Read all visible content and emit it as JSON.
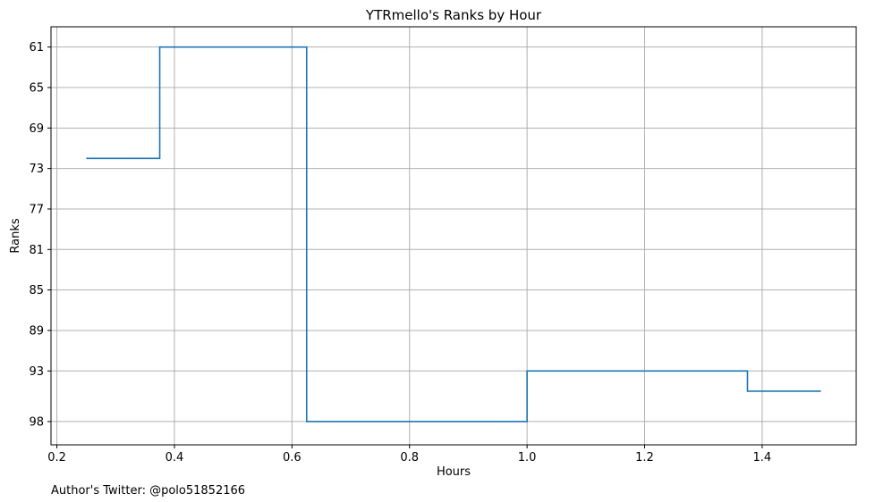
{
  "footer_text": "Author's Twitter: @polo51852166",
  "chart_data": {
    "type": "line",
    "step": "post",
    "title": "YTRmello's Ranks by Hour",
    "xlabel": "Hours",
    "ylabel": "Ranks",
    "xlim": [
      0.19,
      1.56
    ],
    "ylim": [
      100.3,
      59
    ],
    "y_inverted": true,
    "grid": true,
    "x_ticks": [
      0.2,
      0.4,
      0.6,
      0.8,
      1.0,
      1.2,
      1.4
    ],
    "x_tick_labels": [
      "0.2",
      "0.4",
      "0.6",
      "0.8",
      "1.0",
      "1.2",
      "1.4"
    ],
    "y_ticks": [
      61,
      65,
      69,
      73,
      77,
      81,
      85,
      89,
      93,
      98
    ],
    "y_tick_labels": [
      "61",
      "65",
      "69",
      "73",
      "77",
      "81",
      "85",
      "89",
      "93",
      "98"
    ],
    "series": [
      {
        "color": "#1f77b4",
        "x": [
          0.25,
          0.375,
          0.625,
          1.0,
          1.375,
          1.5
        ],
        "y": [
          72,
          61,
          98,
          93,
          95,
          95
        ]
      }
    ]
  }
}
